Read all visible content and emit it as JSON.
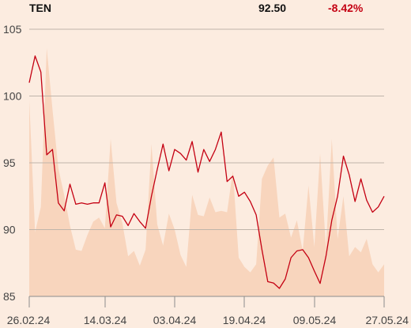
{
  "header": {
    "ticker": "TEN",
    "price": "92.50",
    "change": "-8.42%"
  },
  "colors": {
    "background": "#fcece0",
    "line": "#c40012",
    "area": "#f8d5bd",
    "grid": "#bfb5aa",
    "axis": "#8c8c8c",
    "text": "#444444"
  },
  "chart_data": {
    "type": "line",
    "title": "",
    "xlabel": "",
    "ylabel": "",
    "ylim": [
      85,
      105
    ],
    "yticks": [
      "105",
      "100",
      "95",
      "90",
      "85"
    ],
    "xticks": [
      "26.02.24",
      "14.03.24",
      "03.04.24",
      "19.04.24",
      "09.05.24",
      "27.05.24"
    ],
    "grid": true,
    "series": [
      {
        "values": [
          101.0,
          103.0,
          101.8,
          95.6,
          96.0,
          92.0,
          91.4,
          93.4,
          91.9,
          92.0,
          91.9,
          92.0,
          92.0,
          93.5,
          90.2,
          91.1,
          91.0,
          90.3,
          91.2,
          90.6,
          90.1,
          92.5,
          94.5,
          96.4,
          94.4,
          96.0,
          95.7,
          95.2,
          96.6,
          94.3,
          96.0,
          95.1,
          96.0,
          97.3,
          93.6,
          94.0,
          92.5,
          92.8,
          92.1,
          91.1,
          88.5,
          86.1,
          86.0,
          85.6,
          86.3,
          87.9,
          88.4,
          88.5,
          87.9,
          86.9,
          85.97,
          88.0,
          90.7,
          92.5,
          95.5,
          94.1,
          92.1,
          93.8,
          92.2,
          91.3,
          91.7,
          92.5
        ]
      },
      {
        "type": "area",
        "values": [
          99.7,
          89.8,
          91.7,
          103.6,
          99.0,
          94.6,
          92.6,
          90.3,
          88.5,
          88.4,
          89.6,
          90.6,
          90.9,
          90.1,
          96.8,
          92.0,
          90.5,
          88.0,
          88.4,
          87.3,
          88.5,
          96.4,
          90.4,
          88.8,
          91.2,
          90.0,
          88.1,
          87.2,
          92.6,
          91.1,
          91.0,
          92.4,
          91.3,
          91.4,
          91.3,
          94.4,
          87.9,
          87.2,
          86.8,
          87.4,
          93.8,
          94.8,
          95.4,
          90.9,
          91.2,
          89.4,
          90.7,
          88.4,
          93.3,
          88.7,
          95.7,
          88.6,
          96.8,
          89.3,
          92.5,
          88.0,
          88.7,
          88.3,
          89.3,
          87.4,
          86.8,
          87.4
        ]
      }
    ]
  }
}
